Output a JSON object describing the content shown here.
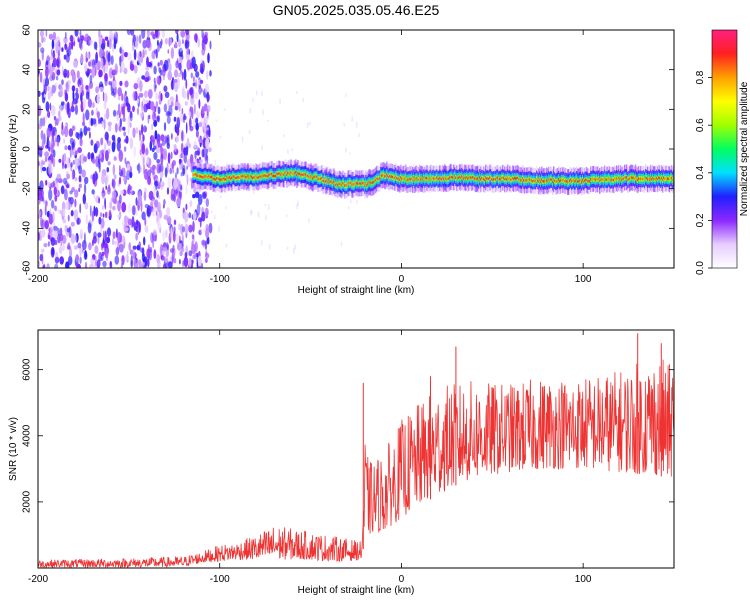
{
  "title": "GN05.2025.035.05.46.E25",
  "chart_data": [
    {
      "type": "heatmap",
      "xlabel": "Height of straight line (km)",
      "ylabel": "Frequency (Hz)",
      "xlim": [
        -200,
        150
      ],
      "ylim": [
        -60,
        60
      ],
      "x_ticks": [
        "-200",
        "-100",
        "0",
        "100"
      ],
      "x_tick_values": [
        -200,
        -100,
        0,
        100
      ],
      "y_ticks": [
        "-60",
        "-40",
        "-20",
        "0",
        "20",
        "40",
        "60"
      ],
      "y_tick_values": [
        -60,
        -40,
        -20,
        0,
        20,
        40,
        60
      ],
      "colorbar": {
        "label": "Normalized spectral amplitude",
        "range": [
          0,
          1
        ],
        "ticks": [
          "0.0",
          "0.2",
          "0.4",
          "0.6",
          "0.8"
        ],
        "tick_values": [
          0,
          0.2,
          0.4,
          0.6,
          0.8
        ],
        "colors": [
          "#ffffff",
          "#e6ccff",
          "#8c28ff",
          "#2020ff",
          "#00e0ff",
          "#00ff60",
          "#a0ff00",
          "#ffff00",
          "#ffa000",
          "#ff2020",
          "#ff2080"
        ]
      },
      "noise_region_x": [
        -200,
        -113
      ],
      "signal_ridge": {
        "x": [
          -115,
          -100,
          -90,
          -80,
          -70,
          -60,
          -50,
          -40,
          -35,
          -30,
          -25,
          -20,
          -15,
          -10,
          0,
          10,
          20,
          30,
          40,
          60,
          80,
          100,
          120,
          150
        ],
        "freq": [
          -13,
          -15,
          -14,
          -14,
          -13,
          -12,
          -14,
          -16,
          -18,
          -18,
          -17,
          -18,
          -16,
          -13,
          -15,
          -15,
          -15,
          -14,
          -15,
          -15,
          -16,
          -16,
          -15,
          -15
        ]
      }
    },
    {
      "type": "line",
      "xlabel": "Height of straight line (km)",
      "ylabel": "SNR (10 * v/v)",
      "xlim": [
        -200,
        150
      ],
      "ylim": [
        0,
        7200
      ],
      "x_ticks": [
        "-200",
        "-100",
        "0",
        "100"
      ],
      "x_tick_values": [
        -200,
        -100,
        0,
        100
      ],
      "y_ticks": [
        "2000",
        "4000",
        "6000"
      ],
      "y_tick_values": [
        2000,
        4000,
        6000
      ],
      "color": "#ee3333",
      "envelope": {
        "x": [
          -200,
          -150,
          -120,
          -110,
          -100,
          -90,
          -80,
          -70,
          -60,
          -50,
          -40,
          -30,
          -22,
          -20,
          -18,
          -10,
          0,
          10,
          20,
          30,
          40,
          50,
          60,
          80,
          100,
          120,
          140,
          150
        ],
        "low": [
          20,
          20,
          40,
          150,
          200,
          250,
          250,
          250,
          250,
          250,
          200,
          200,
          250,
          900,
          1000,
          1100,
          1500,
          1900,
          2200,
          2500,
          2700,
          2800,
          2900,
          3000,
          3000,
          2900,
          2800,
          2700
        ],
        "high": [
          250,
          300,
          350,
          500,
          700,
          800,
          1000,
          1300,
          1200,
          1100,
          1000,
          900,
          800,
          4000,
          3200,
          3500,
          4500,
          5000,
          5500,
          5600,
          5700,
          5600,
          5600,
          5800,
          5800,
          6000,
          6500,
          6100
        ]
      },
      "peaks": {
        "x": [
          -21,
          16,
          30,
          130,
          143
        ],
        "y": [
          5600,
          5800,
          6700,
          7100,
          6800
        ]
      }
    }
  ]
}
